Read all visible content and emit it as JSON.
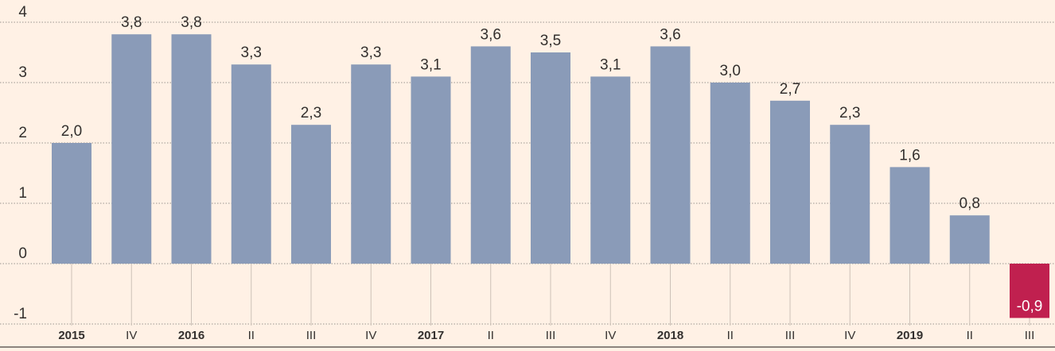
{
  "chart_data": {
    "type": "bar",
    "categories": [
      "2015",
      "IV",
      "2016",
      "II",
      "III",
      "IV",
      "2017",
      "II",
      "III",
      "IV",
      "2018",
      "II",
      "III",
      "IV",
      "2019",
      "II",
      "III"
    ],
    "values": [
      2.0,
      3.8,
      3.8,
      3.3,
      2.3,
      3.3,
      3.1,
      3.6,
      3.5,
      3.1,
      3.6,
      3.0,
      2.7,
      2.3,
      1.6,
      0.8,
      -0.9
    ],
    "value_labels": [
      "2,0",
      "3,8",
      "3,8",
      "3,3",
      "2,3",
      "3,3",
      "3,1",
      "3,6",
      "3,5",
      "3,1",
      "3,6",
      "3,0",
      "2,7",
      "2,3",
      "1,6",
      "0,8",
      "-0,9"
    ],
    "color": "#8a9bb8",
    "negative_color": "#c0204f",
    "ylim": [
      -1,
      4
    ],
    "yticks": [
      -1,
      0,
      1,
      2,
      3,
      4
    ],
    "grid": true
  }
}
